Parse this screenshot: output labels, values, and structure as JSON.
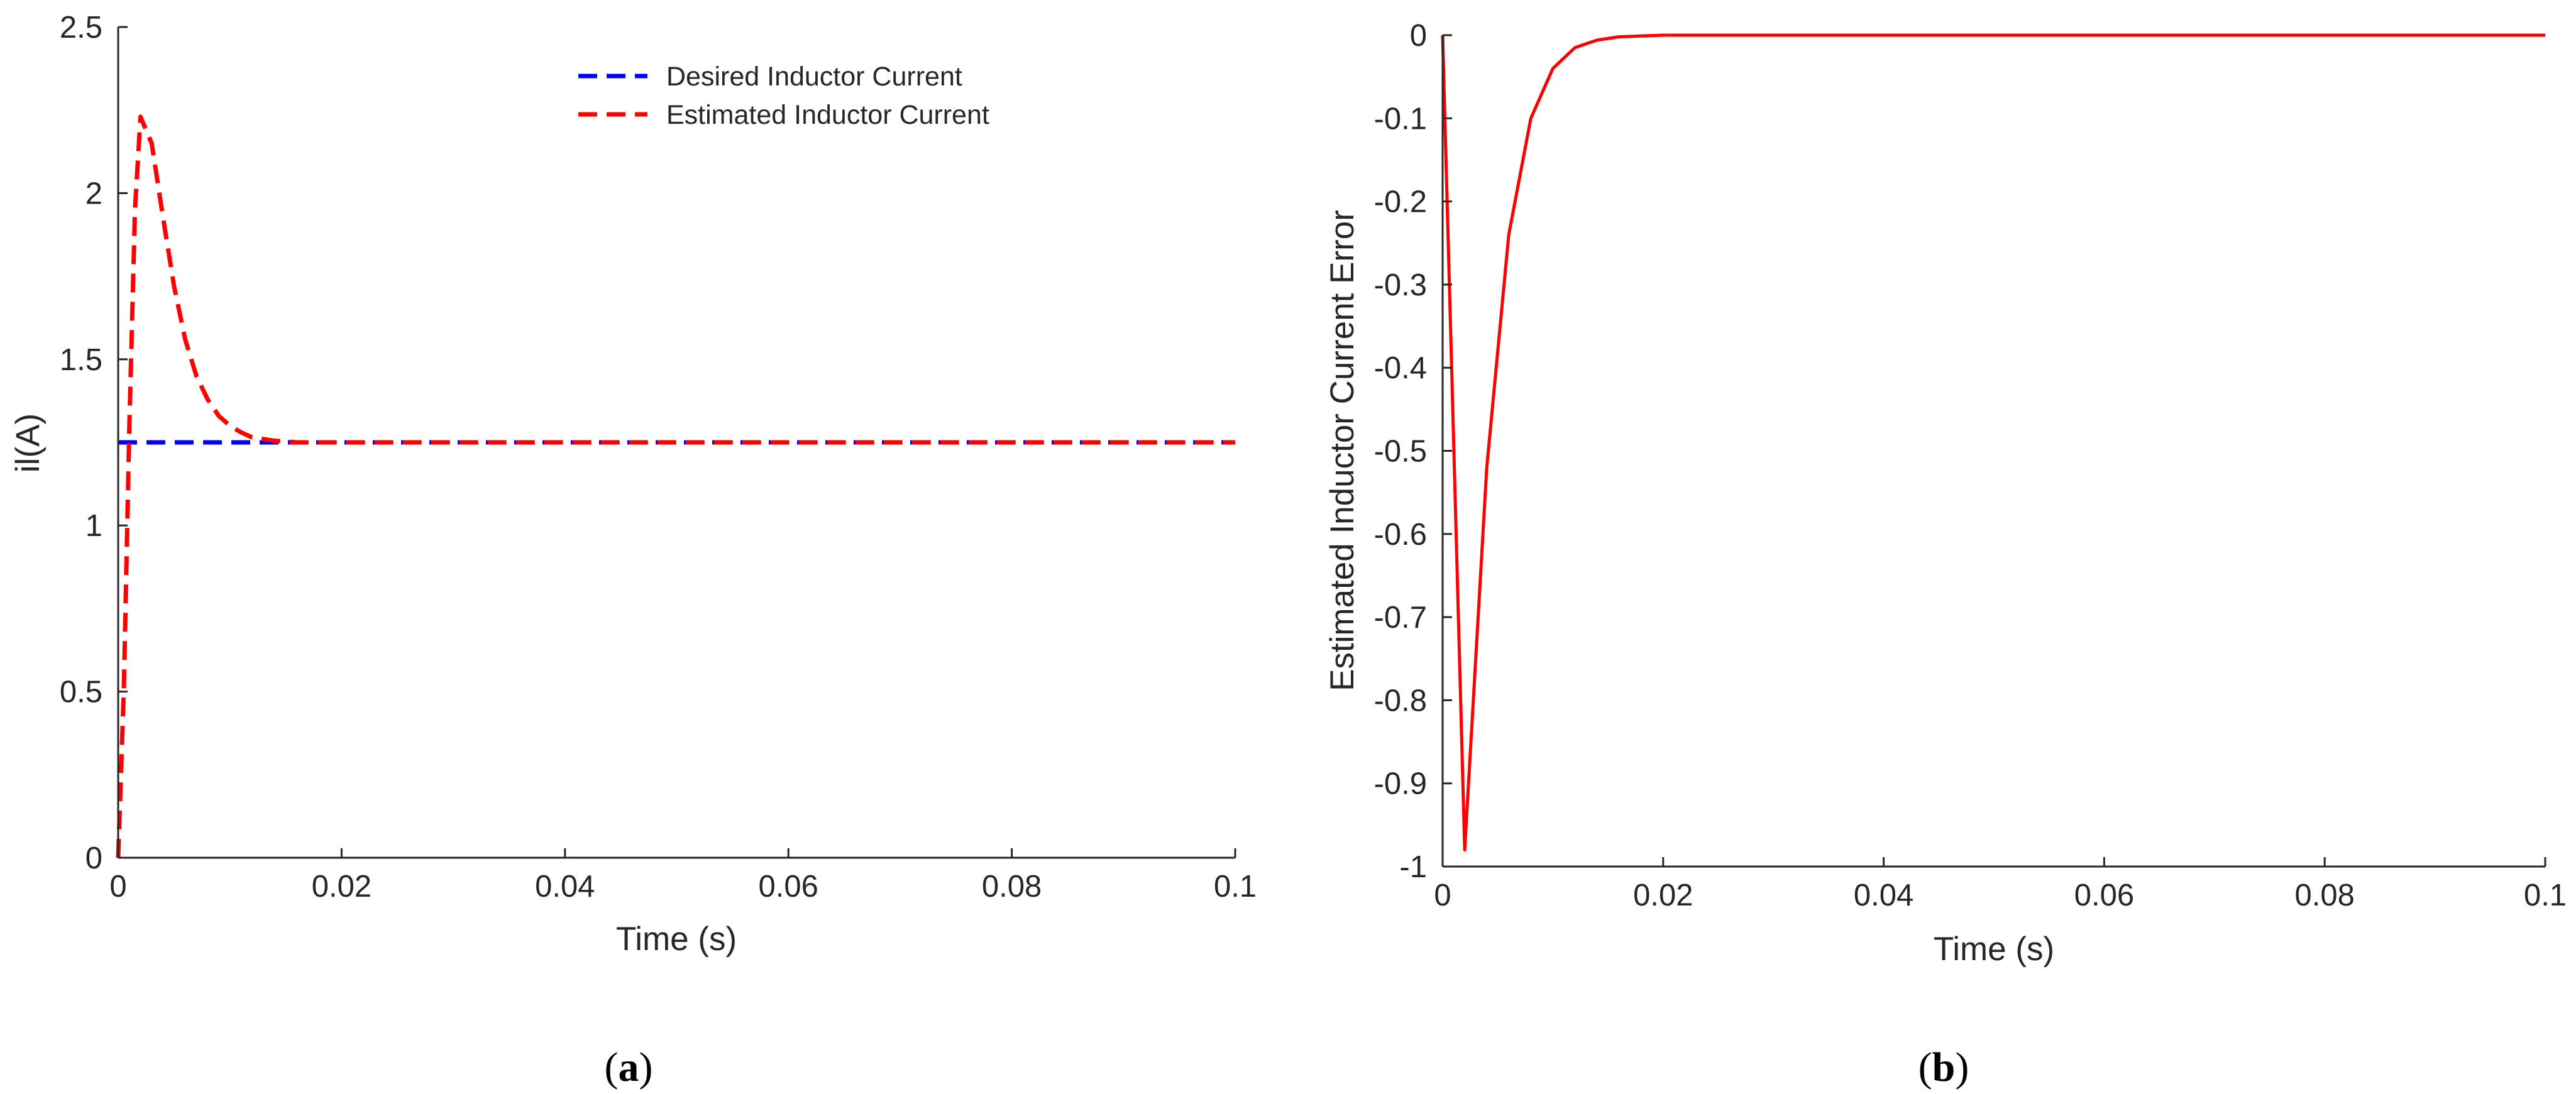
{
  "chart_data": [
    {
      "type": "line",
      "xlabel": "Time (s)",
      "ylabel": "il(A)",
      "caption_letter": "a",
      "xlim": [
        0,
        0.1
      ],
      "ylim": [
        0,
        2.5
      ],
      "xticks": [
        "0",
        "0.02",
        "0.04",
        "0.06",
        "0.08",
        "0.1"
      ],
      "xtick_values": [
        0,
        0.02,
        0.04,
        0.06,
        0.08,
        0.1
      ],
      "yticks": [
        "0",
        "0.5",
        "1",
        "1.5",
        "2",
        "2.5"
      ],
      "ytick_values": [
        0,
        0.5,
        1,
        1.5,
        2,
        2.5
      ],
      "grid": false,
      "legend_position": "top-right",
      "series": [
        {
          "name": "Desired Inductor Current",
          "color": "#0000ff",
          "style": "dashed",
          "x": [
            0,
            0.1
          ],
          "y": [
            1.25,
            1.25
          ]
        },
        {
          "name": "Estimated Inductor Current",
          "color": "#ff0000",
          "style": "dashed",
          "x": [
            0,
            0.0005,
            0.001,
            0.0015,
            0.002,
            0.003,
            0.004,
            0.005,
            0.006,
            0.007,
            0.008,
            0.009,
            0.01,
            0.011,
            0.012,
            0.014,
            0.016,
            0.02,
            0.1
          ],
          "y": [
            0,
            0.5,
            1.3,
            1.95,
            2.23,
            2.15,
            1.93,
            1.72,
            1.56,
            1.45,
            1.38,
            1.33,
            1.3,
            1.28,
            1.265,
            1.255,
            1.25,
            1.25,
            1.25
          ]
        }
      ]
    },
    {
      "type": "line",
      "xlabel": "Time (s)",
      "ylabel": "Estimated Inductor Current Error",
      "caption_letter": "b",
      "xlim": [
        0,
        0.1
      ],
      "ylim": [
        -1,
        0
      ],
      "xticks": [
        "0",
        "0.02",
        "0.04",
        "0.06",
        "0.08",
        "0.1"
      ],
      "xtick_values": [
        0,
        0.02,
        0.04,
        0.06,
        0.08,
        0.1
      ],
      "yticks": [
        "-1",
        "-0.9",
        "-0.8",
        "-0.7",
        "-0.6",
        "-0.5",
        "-0.4",
        "-0.3",
        "-0.2",
        "-0.1",
        "0"
      ],
      "ytick_values": [
        -1,
        -0.9,
        -0.8,
        -0.7,
        -0.6,
        -0.5,
        -0.4,
        -0.3,
        -0.2,
        -0.1,
        0
      ],
      "grid": false,
      "series": [
        {
          "color": "#ff0000",
          "style": "solid",
          "x": [
            0,
            0.002,
            0.004,
            0.006,
            0.008,
            0.01,
            0.012,
            0.014,
            0.016,
            0.018,
            0.02,
            0.1
          ],
          "y": [
            0,
            -0.98,
            -0.52,
            -0.24,
            -0.1,
            -0.04,
            -0.015,
            -0.006,
            -0.002,
            -0.001,
            0,
            0
          ]
        }
      ]
    }
  ]
}
